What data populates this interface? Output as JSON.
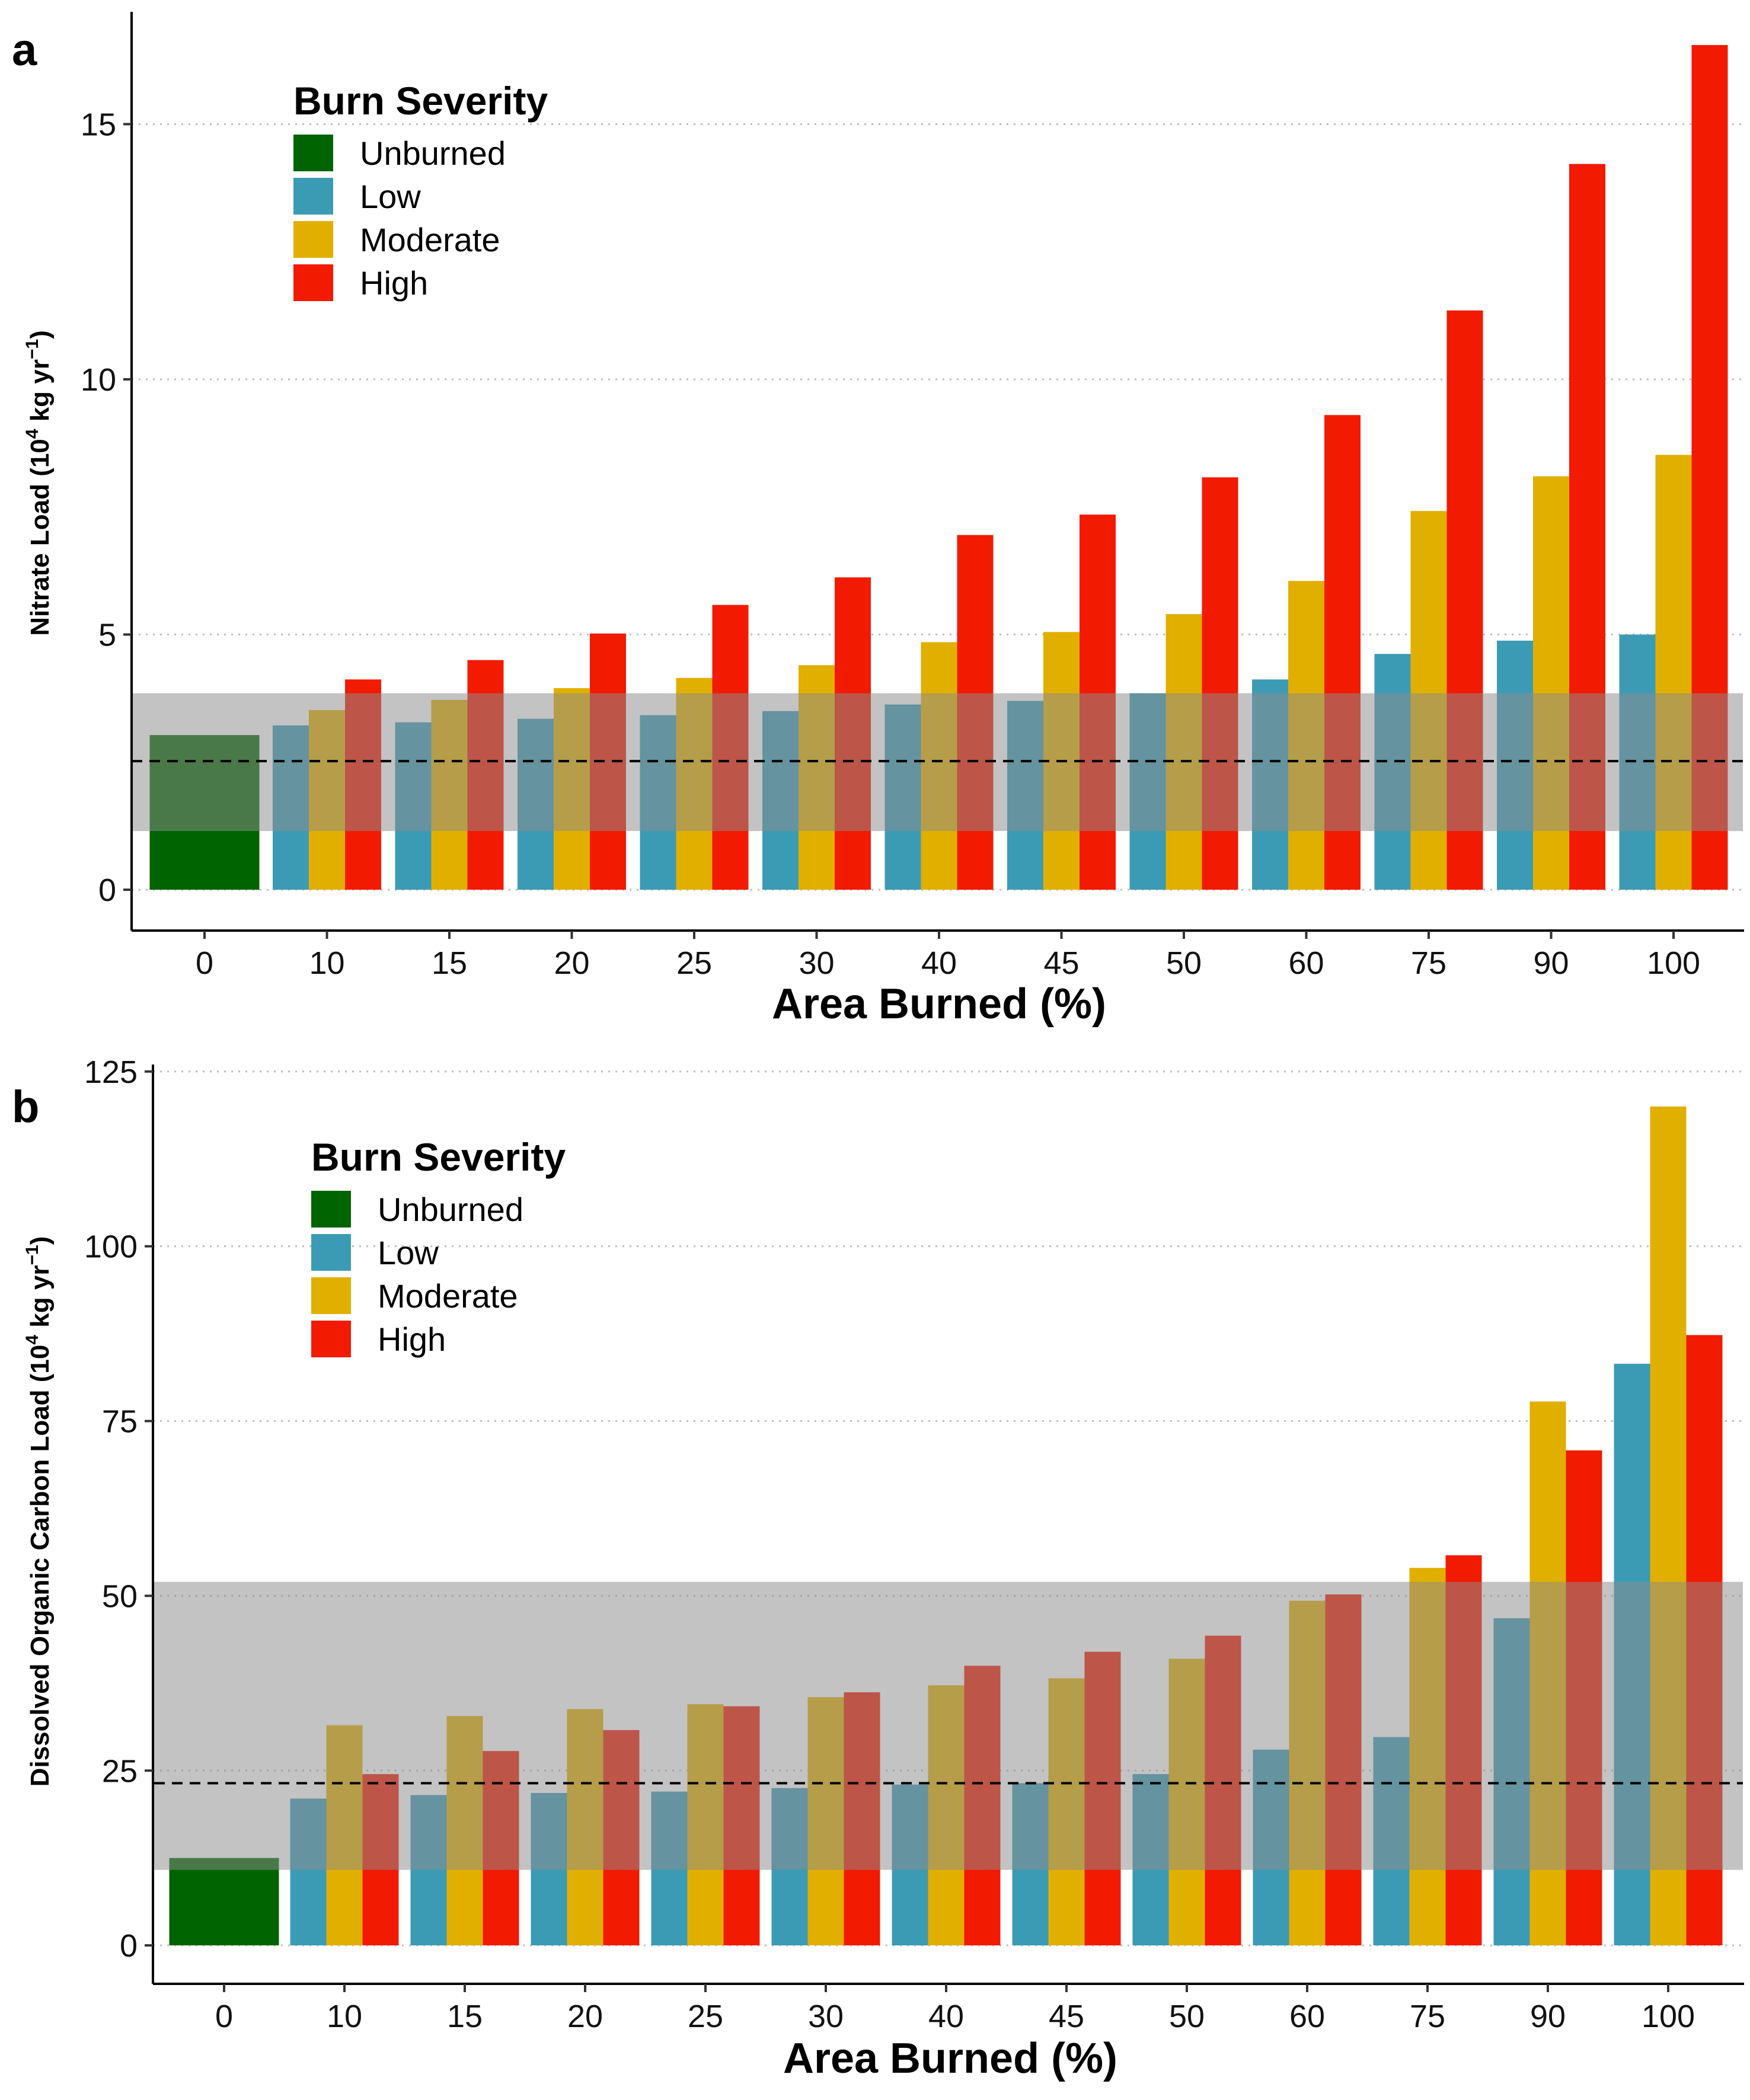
{
  "colors": {
    "Unburned": "#006400",
    "Low": "#3C9BB4",
    "Moderate": "#E1AF00",
    "High": "#F21A00",
    "band": "#8C8C8C",
    "grid": "#BEBEBE"
  },
  "chart_data": [
    {
      "panel": "a",
      "type": "bar",
      "xlabel": "Area Burned (%)",
      "ylabel": "Nitrate Load (10^4 kg yr^-1)",
      "ylabel_parts": {
        "main": "Nitrate Load (10",
        "exp1": "4",
        "unit": " kg yr",
        "exp2": "−1",
        "close": ")"
      },
      "legend": {
        "title": "Burn Severity",
        "entries": [
          "Unburned",
          "Low",
          "Moderate",
          "High"
        ]
      },
      "ylim": [
        -0.8,
        17.2
      ],
      "yticks": [
        0,
        5,
        10,
        15
      ],
      "grid": "horizontal dotted",
      "categories": [
        "0",
        "10",
        "15",
        "20",
        "25",
        "30",
        "40",
        "45",
        "50",
        "60",
        "75",
        "90",
        "100"
      ],
      "series": [
        {
          "name": "Unburned",
          "values": [
            3.03,
            null,
            null,
            null,
            null,
            null,
            null,
            null,
            null,
            null,
            null,
            null,
            null
          ]
        },
        {
          "name": "Low",
          "values": [
            null,
            3.22,
            3.28,
            3.35,
            3.42,
            3.5,
            3.63,
            3.7,
            3.85,
            4.12,
            4.62,
            4.88,
            5.0
          ]
        },
        {
          "name": "Moderate",
          "values": [
            null,
            3.52,
            3.72,
            3.95,
            4.15,
            4.4,
            4.85,
            5.05,
            5.4,
            6.05,
            7.42,
            8.1,
            8.52
          ]
        },
        {
          "name": "High",
          "values": [
            null,
            4.12,
            4.5,
            5.02,
            5.58,
            6.12,
            6.95,
            7.35,
            8.08,
            9.3,
            11.35,
            14.22,
            16.55
          ]
        }
      ],
      "reference_band": [
        1.15,
        3.85
      ],
      "reference_line": 2.52
    },
    {
      "panel": "b",
      "type": "bar",
      "xlabel": "Area Burned (%)",
      "ylabel": "Dissolved Organic Carbon Load (10^4 kg yr^-1)",
      "ylabel_parts": {
        "main": "Dissolved Organic Carbon Load (10",
        "exp1": "4",
        "unit": " kg yr",
        "exp2": "−1",
        "close": ")"
      },
      "legend": {
        "title": "Burn Severity",
        "entries": [
          "Unburned",
          "Low",
          "Moderate",
          "High"
        ]
      },
      "ylim": [
        -5.5,
        126
      ],
      "yticks": [
        0,
        25,
        50,
        75,
        100,
        125
      ],
      "grid": "horizontal dotted",
      "categories": [
        "0",
        "10",
        "15",
        "20",
        "25",
        "30",
        "40",
        "45",
        "50",
        "60",
        "75",
        "90",
        "100"
      ],
      "series": [
        {
          "name": "Unburned",
          "values": [
            12.5,
            null,
            null,
            null,
            null,
            null,
            null,
            null,
            null,
            null,
            null,
            null,
            null
          ]
        },
        {
          "name": "Low",
          "values": [
            null,
            21.0,
            21.5,
            21.8,
            22.0,
            22.5,
            23.0,
            23.2,
            24.5,
            28.0,
            29.8,
            46.8,
            83.2
          ]
        },
        {
          "name": "Moderate",
          "values": [
            null,
            31.5,
            32.8,
            33.8,
            34.5,
            35.5,
            37.2,
            38.2,
            41.0,
            49.3,
            54.0,
            77.8,
            120.0
          ]
        },
        {
          "name": "High",
          "values": [
            null,
            24.5,
            27.8,
            30.8,
            34.2,
            36.2,
            40.0,
            42.0,
            44.3,
            50.2,
            55.8,
            70.8,
            87.3
          ]
        }
      ],
      "reference_band": [
        10.8,
        52.0
      ],
      "reference_line": 23.2
    }
  ]
}
